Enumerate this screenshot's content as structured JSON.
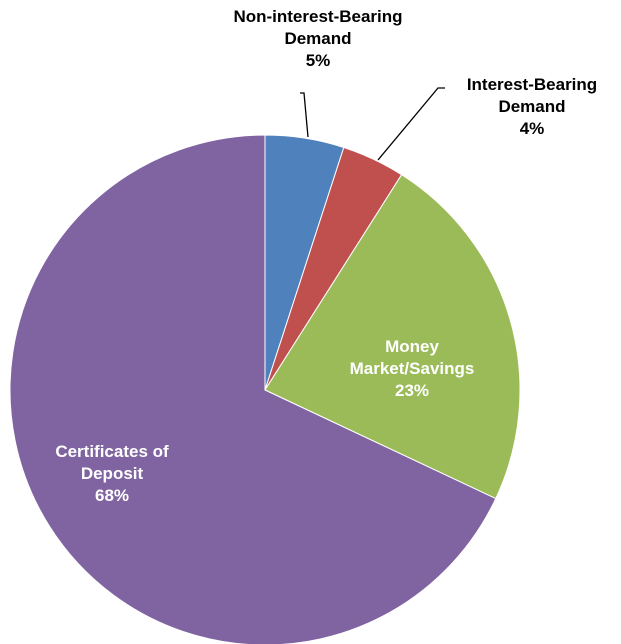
{
  "chart_data": {
    "type": "pie",
    "categories": [
      "Non-interest-Bearing Demand",
      "Interest-Bearing Demand",
      "Money Market/Savings",
      "Certificates of Deposit"
    ],
    "values": [
      5,
      4,
      23,
      68
    ],
    "value_labels": [
      "5%",
      "4%",
      "23%",
      "68%"
    ],
    "colors": [
      "#4f81bd",
      "#c0504d",
      "#9bbb59",
      "#8064a2"
    ]
  }
}
